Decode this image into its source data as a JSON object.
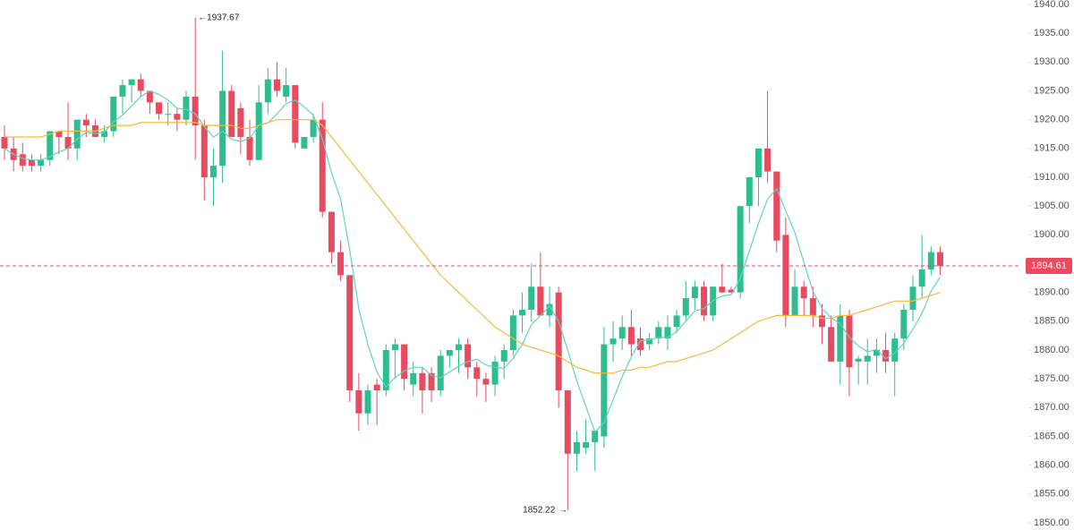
{
  "chart_data": {
    "type": "candlestick",
    "up_color": "#2dbd8e",
    "down_color": "#e84a5f",
    "open": [
      1917,
      1915,
      1914,
      1913,
      1912,
      1913,
      1918,
      1917,
      1915,
      1920,
      1919,
      1917,
      1918,
      1924,
      1926,
      1927,
      1925,
      1923,
      1921,
      1921,
      1920,
      1924,
      1919,
      1910,
      1912,
      1925,
      1922,
      1917,
      1913,
      1923,
      1927,
      1924,
      1926,
      1915,
      1917,
      1920,
      1904,
      1897,
      1893,
      1873,
      1869,
      1874,
      1873,
      1880,
      1881,
      1874,
      1876,
      1876,
      1873,
      1879,
      1880,
      1881,
      1877,
      1875,
      1874,
      1878,
      1880,
      1886,
      1887,
      1891,
      1886,
      1890,
      1873,
      1862,
      1863,
      1864,
      1865,
      1881,
      1882,
      1884,
      1882,
      1881,
      1882,
      1882,
      1884,
      1886,
      1889,
      1891,
      1886,
      1891,
      1890.5,
      1890,
      1905,
      1910,
      1915,
      1911,
      1900,
      1886,
      1891,
      1889,
      1886,
      1884,
      1878,
      1886,
      1878,
      1878,
      1879,
      1880,
      1878,
      1882,
      1887,
      1891,
      1894,
      1897
    ],
    "high": [
      1919,
      1917,
      1916,
      1914,
      1914,
      1918,
      1918,
      1923,
      1920,
      1921,
      1920,
      1919,
      1924,
      1927,
      1927,
      1928,
      1925,
      1923,
      1923,
      1922,
      1925,
      1937.67,
      1920,
      1915,
      1932,
      1926,
      1923,
      1920,
      1926,
      1929,
      1930,
      1929,
      1926,
      1917,
      1921,
      1923,
      1904,
      1899,
      1893,
      1876,
      1874,
      1875,
      1881,
      1882,
      1881,
      1878,
      1877,
      1877,
      1880,
      1880,
      1882,
      1882,
      1878,
      1876,
      1879,
      1881,
      1887,
      1890,
      1895,
      1897,
      1891,
      1891,
      1873,
      1866,
      1868,
      1866,
      1884,
      1885,
      1886,
      1887,
      1884,
      1883,
      1885,
      1886,
      1887,
      1892,
      1892,
      1892,
      1891,
      1895,
      1891,
      1905,
      1910,
      1915,
      1925,
      1911,
      1903,
      1894,
      1892,
      1891,
      1888,
      1886,
      1888,
      1887,
      1879,
      1882,
      1882,
      1883,
      1883,
      1888,
      1893,
      1900,
      1898,
      1898
    ],
    "low": [
      1913,
      1911,
      1911,
      1911,
      1911,
      1912,
      1914,
      1913,
      1913,
      1917,
      1917,
      1916,
      1917,
      1921,
      1923,
      1924,
      1921,
      1920,
      1919,
      1918,
      1919,
      1913,
      1906,
      1905,
      1909,
      1917,
      1914,
      1912,
      1913,
      1921,
      1924,
      1923,
      1915,
      1915,
      1916,
      1903,
      1895,
      1892,
      1871,
      1866,
      1867,
      1867,
      1872,
      1875,
      1873,
      1872,
      1869,
      1871,
      1872,
      1877,
      1876,
      1875,
      1872,
      1871,
      1872,
      1875,
      1879,
      1883,
      1885,
      1886,
      1884,
      1870,
      1852.22,
      1859,
      1862,
      1859,
      1863,
      1878,
      1880,
      1879,
      1879,
      1880,
      1881,
      1880,
      1883,
      1885,
      1887,
      1885,
      1885,
      1890,
      1890,
      1889,
      1902,
      1905,
      1909,
      1897,
      1884,
      1886,
      1886,
      1884,
      1881,
      1878,
      1874,
      1872,
      1874,
      1874,
      1876,
      1876,
      1872,
      1880,
      1885,
      1889,
      1893,
      1893
    ],
    "close": [
      1915,
      1913,
      1912,
      1912,
      1913,
      1918,
      1917,
      1915,
      1920,
      1919,
      1917,
      1918,
      1924,
      1926,
      1927,
      1925,
      1923,
      1921,
      1921,
      1920,
      1924,
      1919,
      1910,
      1912,
      1925,
      1917,
      1917,
      1913,
      1923,
      1927,
      1925,
      1926,
      1916,
      1917,
      1920,
      1904,
      1897,
      1893,
      1873,
      1869,
      1873,
      1873,
      1880,
      1881,
      1875,
      1876,
      1873,
      1873,
      1879,
      1880,
      1881,
      1877,
      1875,
      1874,
      1878,
      1880,
      1886,
      1887,
      1891,
      1886,
      1888,
      1873,
      1862,
      1864,
      1864,
      1866,
      1881,
      1882,
      1884,
      1881,
      1880,
      1882,
      1884,
      1884,
      1886,
      1889,
      1891,
      1886,
      1891,
      1890,
      1890,
      1905,
      1910,
      1915,
      1911,
      1899,
      1886,
      1891,
      1889,
      1886,
      1884,
      1878,
      1886,
      1877,
      1878.5,
      1879,
      1880,
      1878,
      1882,
      1887,
      1891,
      1894,
      1897,
      1894.61
    ],
    "lines": [
      {
        "color": "#5fd4c1",
        "values": [
          1915,
          1914,
          1913.3,
          1913,
          1913,
          1913.6,
          1914.4,
          1915,
          1916.6,
          1917.8,
          1917.6,
          1917.8,
          1919.6,
          1920.8,
          1922.4,
          1924,
          1925,
          1924.4,
          1923.4,
          1922,
          1921.8,
          1921,
          1918.8,
          1917,
          1918,
          1916.6,
          1916.2,
          1916.8,
          1919,
          1919.4,
          1921,
          1922.8,
          1923.4,
          1922.2,
          1920.8,
          1916.6,
          1910.8,
          1906.2,
          1897.4,
          1887.2,
          1881,
          1876.2,
          1873.6,
          1875.2,
          1876.4,
          1877,
          1877,
          1875.6,
          1875.2,
          1876.2,
          1877.2,
          1878,
          1878.4,
          1877.4,
          1877,
          1876.8,
          1878.6,
          1881,
          1884.4,
          1886,
          1887.6,
          1885,
          1880,
          1874.6,
          1870.2,
          1865.8,
          1867.4,
          1871.4,
          1875.4,
          1878.8,
          1881.6,
          1881.8,
          1882.2,
          1882.2,
          1883.2,
          1885,
          1886.8,
          1887.2,
          1888.6,
          1889.4,
          1889.6,
          1892.4,
          1897.2,
          1902,
          1906.2,
          1908,
          1904.2,
          1900.4,
          1895.2,
          1890.2,
          1887.2,
          1885.6,
          1884.6,
          1882.2,
          1880.7,
          1879.7,
          1880.1,
          1878.5,
          1879.5,
          1881.2,
          1883.6,
          1886.4,
          1890.2,
          1892.7
        ]
      },
      {
        "color": "#f5b83d",
        "values": [
          1917,
          1917,
          1917,
          1917,
          1917,
          1917.5,
          1918,
          1918,
          1918,
          1918,
          1918,
          1918.5,
          1919,
          1919,
          1919,
          1919.5,
          1919.5,
          1919.5,
          1919.5,
          1919.5,
          1919.5,
          1919.5,
          1919,
          1919,
          1919,
          1919,
          1918.5,
          1918.5,
          1919,
          1919.5,
          1920,
          1920,
          1920,
          1920,
          1920,
          1919,
          1917,
          1915,
          1913,
          1911,
          1909,
          1907,
          1905,
          1903,
          1901,
          1899,
          1897,
          1895,
          1893,
          1891.5,
          1890,
          1888.5,
          1887,
          1885.5,
          1884,
          1883,
          1882,
          1881,
          1880.5,
          1880,
          1879.5,
          1879,
          1878,
          1877,
          1876.5,
          1876,
          1876,
          1876,
          1876.5,
          1876.5,
          1877,
          1877,
          1877.5,
          1878,
          1878,
          1878.5,
          1879,
          1879.5,
          1880,
          1881,
          1882,
          1883,
          1884,
          1885,
          1885.5,
          1886,
          1886,
          1886,
          1886,
          1886,
          1885.5,
          1885.5,
          1886,
          1886,
          1886.5,
          1887,
          1887.5,
          1888,
          1888.5,
          1888.5,
          1888.5,
          1889,
          1889.5,
          1890
        ]
      }
    ],
    "ylim": [
      1850,
      1940
    ],
    "yticks": [
      {
        "value": 1850,
        "label": "1850.00"
      },
      {
        "value": 1855,
        "label": "1855.00"
      },
      {
        "value": 1860,
        "label": "1860.00"
      },
      {
        "value": 1865,
        "label": "1865.00"
      },
      {
        "value": 1870,
        "label": "1870.00"
      },
      {
        "value": 1875,
        "label": "1875.00"
      },
      {
        "value": 1880,
        "label": "1880.00"
      },
      {
        "value": 1885,
        "label": "1885.00"
      },
      {
        "value": 1890,
        "label": "1890.00"
      },
      {
        "value": 1895,
        "label": "1895.00"
      },
      {
        "value": 1900,
        "label": "1900.00"
      },
      {
        "value": 1905,
        "label": "1905.00"
      },
      {
        "value": 1910,
        "label": "1910.00"
      },
      {
        "value": 1915,
        "label": "1915.00"
      },
      {
        "value": 1920,
        "label": "1920.00"
      },
      {
        "value": 1925,
        "label": "1925.00"
      },
      {
        "value": 1930,
        "label": "1930.00"
      },
      {
        "value": 1935,
        "label": "1935.00"
      },
      {
        "value": 1940,
        "label": "1940.00"
      }
    ],
    "high_label": {
      "value": 1937.67,
      "label": "1937.67"
    },
    "low_label": {
      "value": 1852.22,
      "label": "1852.22"
    },
    "last_price": {
      "value": 1894.61,
      "label": "1894.61",
      "color": "#e84a5f"
    }
  }
}
